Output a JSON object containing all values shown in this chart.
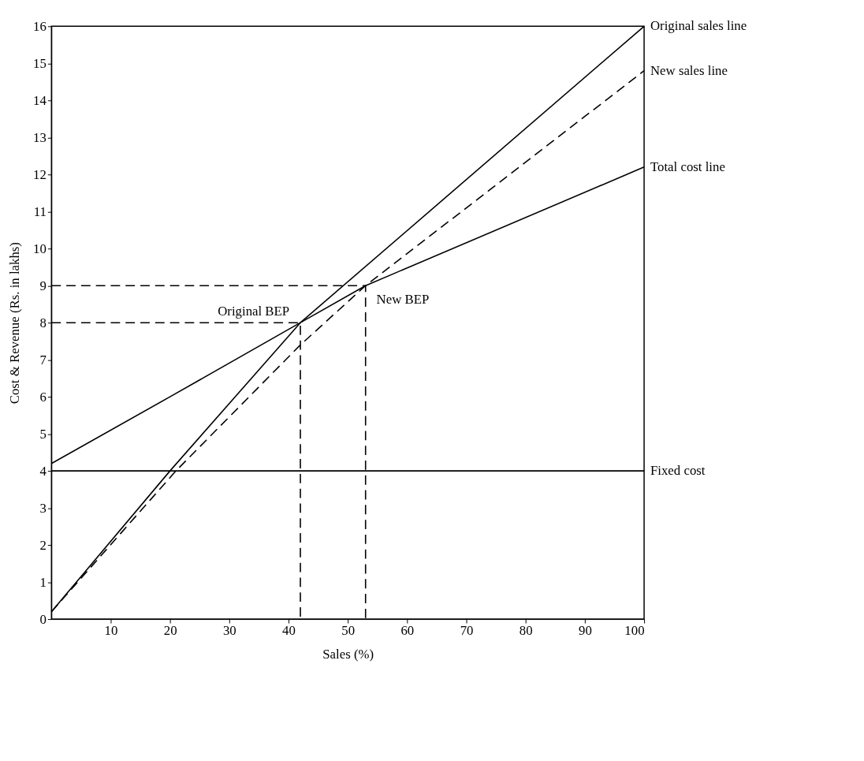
{
  "chart_data": {
    "type": "line",
    "xlabel": "Sales (%)",
    "ylabel": "Cost & Revenue (Rs. in lakhs)",
    "xlim": [
      0,
      100
    ],
    "xticks": [
      10,
      20,
      30,
      40,
      50,
      60,
      70,
      80,
      90,
      100
    ],
    "ylim": [
      0,
      16
    ],
    "yticks": [
      0,
      1,
      2,
      3,
      4,
      5,
      6,
      7,
      8,
      9,
      10,
      11,
      12,
      13,
      14,
      15,
      16
    ],
    "grid": false,
    "marker": "none",
    "series": [
      {
        "name": "Original sales line",
        "color": "#000000",
        "line_style": "solid",
        "x": [
          0,
          20,
          42,
          100
        ],
        "values": [
          0.2,
          4,
          8,
          16
        ]
      },
      {
        "name": "New sales line",
        "color": "#000000",
        "line_style": "dashed",
        "x": [
          0,
          21,
          42,
          53,
          100
        ],
        "values": [
          0.2,
          4,
          7.4,
          9,
          14.8
        ]
      },
      {
        "name": "Total cost line",
        "color": "#000000",
        "line_style": "solid",
        "x": [
          0,
          20,
          42,
          53,
          100
        ],
        "values": [
          4.2,
          6,
          8,
          9,
          12.2
        ]
      },
      {
        "name": "Fixed cost",
        "color": "#000000",
        "line_style": "solid",
        "x": [
          0,
          100
        ],
        "values": [
          4,
          4
        ]
      },
      {
        "color": "#000000",
        "line_style": "dashed",
        "x": [
          0,
          42,
          42
        ],
        "values": [
          8,
          8,
          0
        ]
      },
      {
        "color": "#000000",
        "line_style": "dashed",
        "x": [
          0,
          53,
          53
        ],
        "values": [
          9,
          9,
          0
        ]
      }
    ],
    "annotations": [
      {
        "text": "Original BEP",
        "x": 42,
        "y": 8
      },
      {
        "text": "New BEP",
        "x": 53,
        "y": 9
      }
    ]
  }
}
